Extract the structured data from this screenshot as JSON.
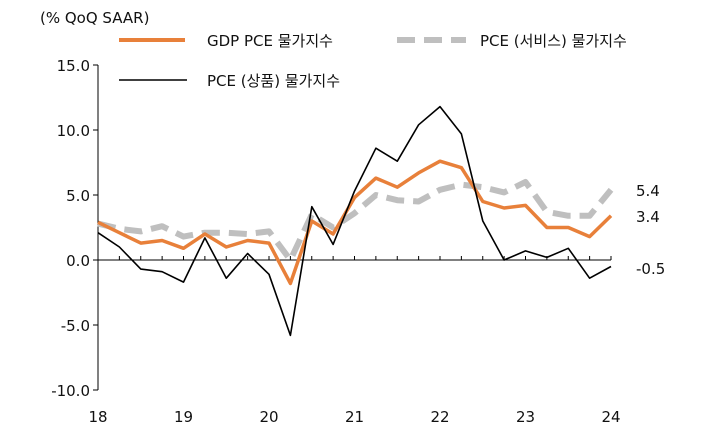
{
  "chart_data": {
    "type": "line",
    "unit_label": "(% QoQ SAAR)",
    "ylim": [
      -10,
      15
    ],
    "yticks": [
      {
        "value": 15,
        "label": "15.0"
      },
      {
        "value": 10,
        "label": "10.0"
      },
      {
        "value": 5,
        "label": "5.0"
      },
      {
        "value": 0,
        "label": "0.0"
      },
      {
        "value": -5,
        "label": "-5.0"
      },
      {
        "value": -10,
        "label": "-10.0"
      }
    ],
    "xlim": [
      0,
      24
    ],
    "xticks": [
      {
        "value": 0,
        "label": "18"
      },
      {
        "value": 4,
        "label": "19"
      },
      {
        "value": 8,
        "label": "20"
      },
      {
        "value": 12,
        "label": "21"
      },
      {
        "value": 16,
        "label": "22"
      },
      {
        "value": 20,
        "label": "23"
      },
      {
        "value": 24,
        "label": "24"
      }
    ],
    "x": [
      0,
      1,
      2,
      3,
      4,
      5,
      6,
      7,
      8,
      9,
      10,
      11,
      12,
      13,
      14,
      15,
      16,
      17,
      18,
      19,
      20,
      21,
      22,
      23,
      24
    ],
    "series": [
      {
        "name": "GDP PCE 물가지수",
        "color": "#E8803A",
        "style": "solid-thick",
        "values": [
          2.9,
          2.1,
          1.3,
          1.5,
          0.9,
          2.0,
          1.0,
          1.5,
          1.3,
          -1.8,
          3.0,
          2.0,
          4.8,
          6.3,
          5.6,
          6.7,
          7.6,
          7.1,
          4.5,
          4.0,
          4.2,
          2.5,
          2.5,
          1.8,
          3.4
        ]
      },
      {
        "name": "PCE (서비스) 물가지수",
        "color": "#BFBFBF",
        "style": "dashed",
        "values": [
          2.8,
          2.4,
          2.2,
          2.6,
          1.8,
          2.1,
          2.1,
          2.0,
          2.2,
          0.0,
          3.5,
          2.5,
          3.6,
          5.0,
          4.6,
          4.5,
          5.4,
          5.8,
          5.6,
          5.2,
          6.0,
          3.7,
          3.4,
          3.4,
          5.4
        ]
      },
      {
        "name": "PCE (상품) 물가지수",
        "color": "#000000",
        "style": "solid-thin",
        "values": [
          2.1,
          1.0,
          -0.7,
          -0.9,
          -1.7,
          1.7,
          -1.4,
          0.5,
          -1.1,
          -5.8,
          4.1,
          1.2,
          5.3,
          8.6,
          7.6,
          10.4,
          11.8,
          9.7,
          3.0,
          0.0,
          0.7,
          0.2,
          0.9,
          -1.4,
          -0.5
        ]
      }
    ],
    "end_labels": [
      {
        "series": "PCE (서비스) 물가지수",
        "label": "5.4"
      },
      {
        "series": "GDP PCE 물가지수",
        "label": "3.4"
      },
      {
        "series": "PCE (상품) 물가지수",
        "label": "-0.5"
      }
    ]
  }
}
